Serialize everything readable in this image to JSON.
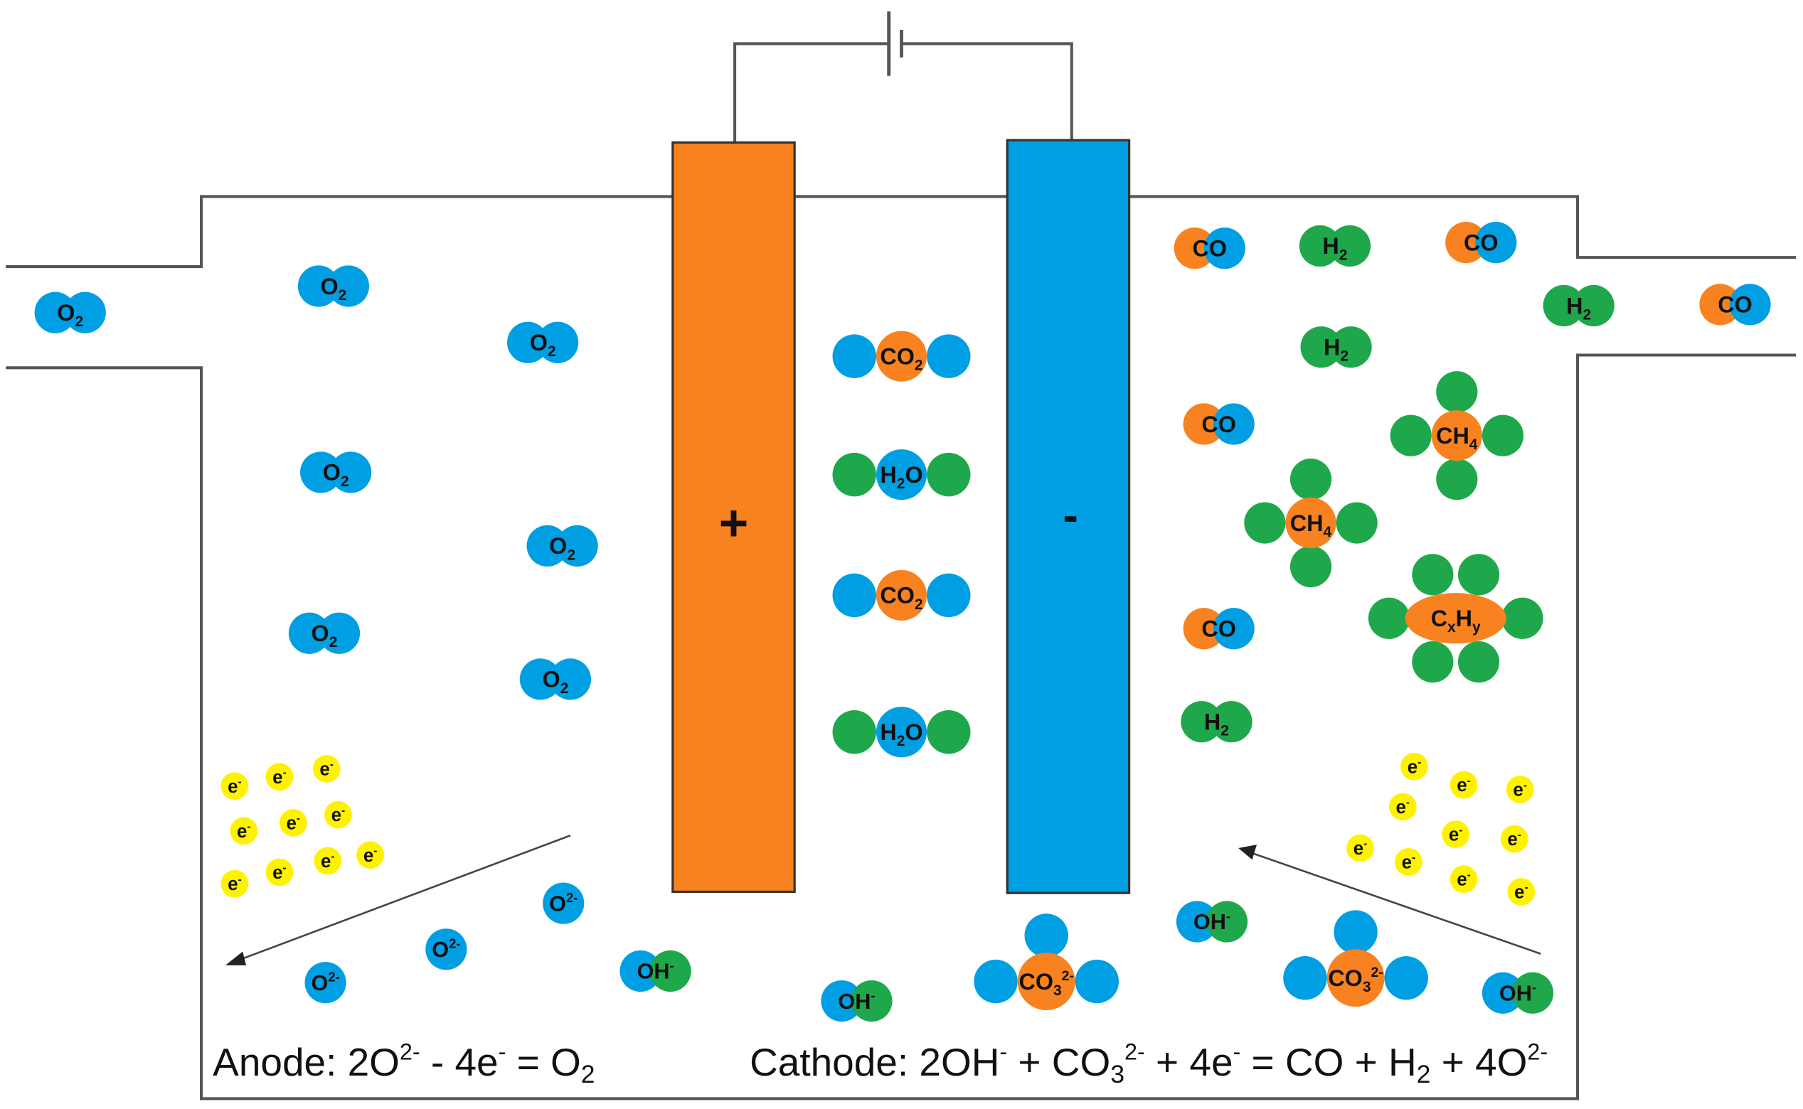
{
  "colors": {
    "anode": "#F7821F",
    "cathode": "#009FE3",
    "oxygen": "#009FE3",
    "carbon": "#F7821F",
    "hydrogen": "#1FA84B",
    "electron": "#FFF200",
    "line": "#555555"
  },
  "electrodes": {
    "anode_sign": "+",
    "cathode_sign": "-"
  },
  "equations": {
    "anode": [
      "Anode: 2O",
      "2-",
      " - 4e",
      "-",
      " = O",
      "2"
    ],
    "cathode": [
      "Cathode: 2OH",
      "-",
      " + CO",
      "3",
      "2-",
      " + 4e",
      "-",
      " = CO + H",
      "2",
      " + 4O",
      "2-"
    ]
  },
  "species": [
    "O2",
    "O2",
    "O2",
    "O2",
    "O2",
    "O2",
    "O2",
    "O2",
    "CO2",
    "H2O",
    "CO2",
    "H2O",
    "CO",
    "CO",
    "CO",
    "CO",
    "CO",
    "H2",
    "H2",
    "H2",
    "H2",
    "CH4",
    "CH4",
    "CxHy",
    "O2-",
    "O2-",
    "O2-",
    "OH-",
    "OH-",
    "OH-",
    "OH-",
    "CO32-",
    "CO32-",
    "e-"
  ]
}
